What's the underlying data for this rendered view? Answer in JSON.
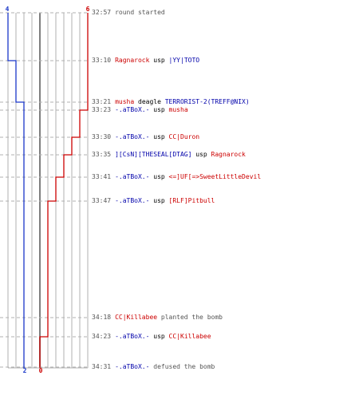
{
  "colors": {
    "ct": "#1a37c9",
    "t": "#cc0000",
    "grid": "#b0b0b0",
    "axis": "#7f7f7f",
    "text_gray": "#555555"
  },
  "ct_team": {
    "start_count": "4",
    "end_count": "2"
  },
  "t_team": {
    "start_count": "6",
    "end_count": "0"
  },
  "events": [
    {
      "time": "32:57",
      "parts": [
        {
          "text": "round started",
          "color": "gray"
        }
      ]
    },
    {
      "time": "33:10",
      "parts": [
        {
          "text": "Ragnarock",
          "color": "red"
        },
        {
          "text": " usp ",
          "color": "black"
        },
        {
          "text": "|YY|TOTO",
          "color": "blue"
        }
      ]
    },
    {
      "time": "33:21",
      "parts": [
        {
          "text": "musha",
          "color": "red"
        },
        {
          "text": " deagle ",
          "color": "black"
        },
        {
          "text": "TERRORIST-2(TREFF@NIX)",
          "color": "blue"
        }
      ]
    },
    {
      "time": "33:23",
      "parts": [
        {
          "text": "-.aTBoX.-",
          "color": "blue"
        },
        {
          "text": " usp ",
          "color": "black"
        },
        {
          "text": "musha",
          "color": "red"
        }
      ]
    },
    {
      "time": "33:30",
      "parts": [
        {
          "text": "-.aTBoX.-",
          "color": "blue"
        },
        {
          "text": " usp ",
          "color": "black"
        },
        {
          "text": "CC|Duron",
          "color": "red"
        }
      ]
    },
    {
      "time": "33:35",
      "parts": [
        {
          "text": "][CsN][THESEAL[DTAG]",
          "color": "blue"
        },
        {
          "text": " usp ",
          "color": "black"
        },
        {
          "text": "Ragnarock",
          "color": "red"
        }
      ]
    },
    {
      "time": "33:41",
      "parts": [
        {
          "text": "-.aTBoX.-",
          "color": "blue"
        },
        {
          "text": " usp ",
          "color": "black"
        },
        {
          "text": "<=]UF[=>SweetLittleDevil",
          "color": "red"
        }
      ]
    },
    {
      "time": "33:47",
      "parts": [
        {
          "text": "-.aTBoX.-",
          "color": "blue"
        },
        {
          "text": " usp ",
          "color": "black"
        },
        {
          "text": "[RLF]Pitbull",
          "color": "red"
        }
      ]
    },
    {
      "time": "34:18",
      "parts": [
        {
          "text": "CC|Killabee",
          "color": "red"
        },
        {
          "text": " planted the bomb",
          "color": "gray"
        }
      ]
    },
    {
      "time": "34:23",
      "parts": [
        {
          "text": "-.aTBoX.-",
          "color": "blue"
        },
        {
          "text": " usp ",
          "color": "black"
        },
        {
          "text": "CC|Killabee",
          "color": "red"
        }
      ]
    },
    {
      "time": "34:31",
      "parts": [
        {
          "text": "-.aTBoX.-",
          "color": "blue"
        },
        {
          "text": " defused the bomb",
          "color": "gray"
        }
      ]
    }
  ]
}
